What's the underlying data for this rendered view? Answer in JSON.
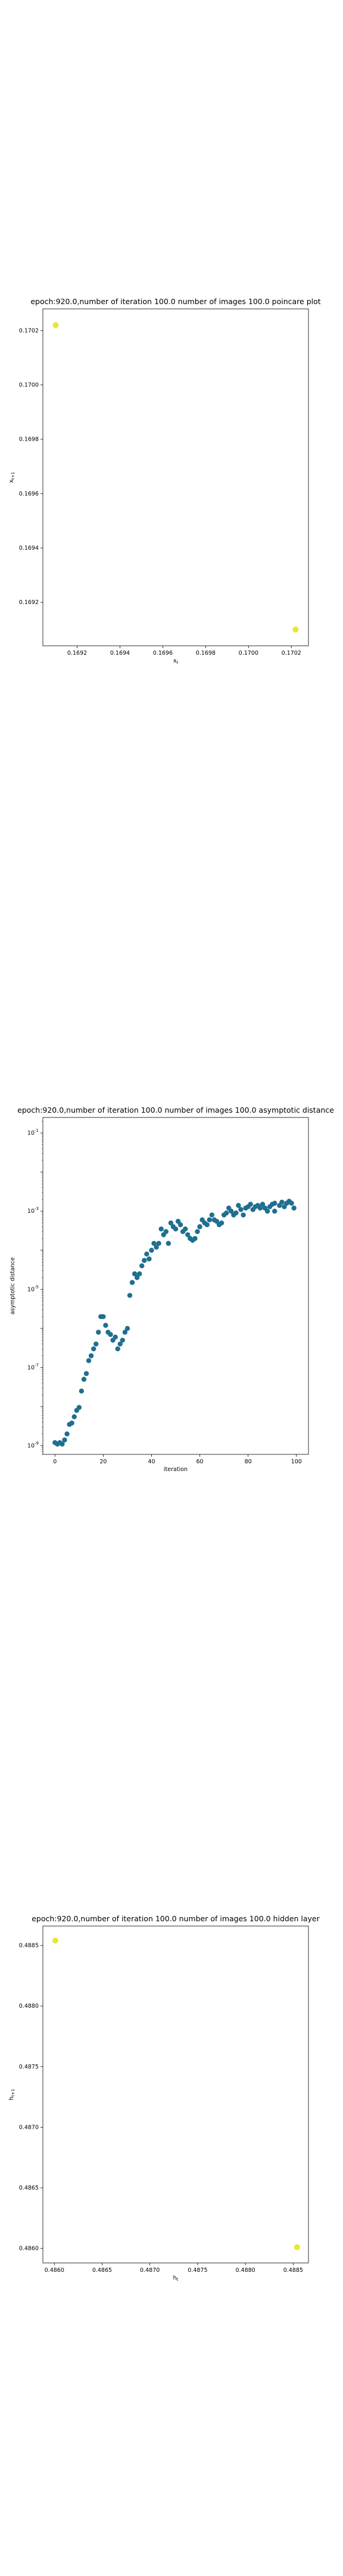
{
  "chart_data": [
    {
      "type": "scatter",
      "title": "epoch:920.0,number of iteration 100.0 number of images 100.0 poincare plot",
      "xlabel": "x_t",
      "ylabel": "x_t+1",
      "xlim": [
        0.16904,
        0.17028
      ],
      "ylim": [
        0.16904,
        0.17028
      ],
      "xticks": [
        "0.1692",
        "0.1694",
        "0.1696",
        "0.1698",
        "0.1700",
        "0.1702"
      ],
      "yticks": [
        "0.1692",
        "0.1694",
        "0.1696",
        "0.1698",
        "0.1700",
        "0.1702"
      ],
      "xtick_values": [
        0.1692,
        0.1694,
        0.1696,
        0.1698,
        0.17,
        0.1702
      ],
      "ytick_values": [
        0.1692,
        0.1694,
        0.1696,
        0.1698,
        0.17,
        0.1702
      ],
      "point_color": "#e8e830",
      "x": [
        0.1691,
        0.17022
      ],
      "y": [
        0.17022,
        0.1691
      ]
    },
    {
      "type": "scatter",
      "title": "epoch:920.0,number of iteration 100.0  number of images 100.0 asymptotic distance",
      "xlabel": "iteration",
      "ylabel": "asymptotic distance",
      "xlim": [
        -5,
        105
      ],
      "yscale": "log",
      "ylim": [
        6e-10,
        0.25
      ],
      "xticks": [
        "0",
        "20",
        "40",
        "60",
        "80",
        "100"
      ],
      "xtick_values": [
        0,
        20,
        40,
        60,
        80,
        100
      ],
      "ytick_exponents": [
        -9,
        -7,
        -5,
        -3,
        -1
      ],
      "point_color": "#1f6f8f",
      "x": [
        0,
        1,
        2,
        3,
        4,
        5,
        6,
        7,
        8,
        9,
        10,
        11,
        12,
        13,
        14,
        15,
        16,
        17,
        18,
        19,
        20,
        21,
        22,
        23,
        24,
        25,
        26,
        27,
        28,
        29,
        30,
        31,
        32,
        33,
        34,
        35,
        36,
        37,
        38,
        39,
        40,
        41,
        42,
        43,
        44,
        45,
        46,
        47,
        48,
        49,
        50,
        51,
        52,
        53,
        54,
        55,
        56,
        57,
        58,
        59,
        60,
        61,
        62,
        63,
        64,
        65,
        66,
        67,
        68,
        69,
        70,
        71,
        72,
        73,
        74,
        75,
        76,
        77,
        78,
        79,
        80,
        81,
        82,
        83,
        84,
        85,
        86,
        87,
        88,
        89,
        90,
        91,
        91,
        93,
        94,
        95,
        96,
        97,
        98,
        99
      ],
      "y": [
        1.2e-09,
        1.1e-09,
        1.2e-09,
        1.1e-09,
        1.4e-09,
        2e-09,
        3.5e-09,
        3.8e-09,
        5.5e-09,
        8e-09,
        9.5e-09,
        2.5e-08,
        5e-08,
        7e-08,
        1.5e-07,
        2e-07,
        3e-07,
        4e-07,
        8e-07,
        2e-06,
        2e-06,
        1.2e-06,
        8e-07,
        7e-07,
        5e-07,
        6e-07,
        3e-07,
        4e-07,
        5e-07,
        8e-07,
        1e-06,
        7e-06,
        1.5e-05,
        2.5e-05,
        2e-05,
        2.5e-05,
        4e-05,
        5.5e-05,
        8e-05,
        6e-05,
        0.0001,
        0.00015,
        0.00012,
        0.00015,
        0.00035,
        0.00025,
        0.0003,
        0.00015,
        0.0005,
        0.0004,
        0.00035,
        0.00055,
        0.00045,
        0.0003,
        0.00035,
        0.00025,
        0.0002,
        0.00018,
        0.0002,
        0.0003,
        0.0004,
        0.0006,
        0.0005,
        0.00045,
        0.0006,
        0.0008,
        0.0006,
        0.00055,
        0.00045,
        0.0005,
        0.0008,
        0.0009,
        0.0012,
        0.001,
        0.0008,
        0.0009,
        0.0014,
        0.0011,
        0.0008,
        0.0012,
        0.0013,
        0.0015,
        0.0011,
        0.0013,
        0.0014,
        0.0012,
        0.0015,
        0.0012,
        0.001,
        0.0013,
        0.0015,
        0.001,
        0.0016,
        0.0014,
        0.0017,
        0.0013,
        0.0016,
        0.0018,
        0.0016,
        0.0012
      ]
    },
    {
      "type": "scatter",
      "title": "epoch:920.0,number of iteration 100.0  number of images 100.0 hidden layer",
      "xlabel": "h_t",
      "ylabel": "h_t+1",
      "xlim": [
        0.48588,
        0.48866
      ],
      "ylim": [
        0.48588,
        0.48866
      ],
      "xticks": [
        "0.4860",
        "0.4865",
        "0.4870",
        "0.4875",
        "0.4880",
        "0.4885"
      ],
      "yticks": [
        "0.4860",
        "0.4865",
        "0.4870",
        "0.4875",
        "0.4880",
        "0.4885"
      ],
      "xtick_values": [
        0.486,
        0.4865,
        0.487,
        0.4875,
        0.488,
        0.4885
      ],
      "ytick_values": [
        0.486,
        0.4865,
        0.487,
        0.4875,
        0.488,
        0.4885
      ],
      "point_color": "#e8e830",
      "x": [
        0.48601,
        0.48854
      ],
      "y": [
        0.48854,
        0.48601
      ]
    }
  ]
}
